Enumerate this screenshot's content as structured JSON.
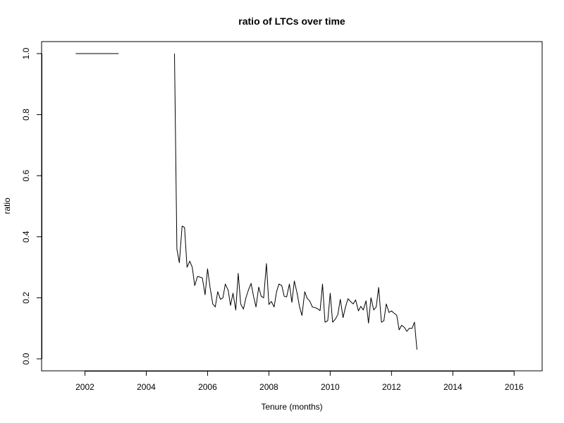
{
  "chart_data": {
    "type": "line",
    "title": "ratio of LTCs over time",
    "xlabel": "Tenure (months)",
    "ylabel": "ratio",
    "xlim": [
      2001.0,
      2016.5
    ],
    "ylim": [
      0.0,
      1.0
    ],
    "xticks": [
      "2002",
      "2004",
      "2006",
      "2008",
      "2010",
      "2012",
      "2014",
      "2016"
    ],
    "yticks": [
      "0.0",
      "0.2",
      "0.4",
      "0.6",
      "0.8",
      "1.0"
    ],
    "grid": false,
    "series": [
      {
        "segments": [
          {
            "x": [
              2001.7,
              2003.1
            ],
            "y": [
              1.0,
              1.0
            ]
          },
          {
            "x": [
              2004.92,
              2005.0,
              2005.08,
              2005.17,
              2005.25,
              2005.33,
              2005.42,
              2005.5,
              2005.58,
              2005.67,
              2005.75,
              2005.83,
              2005.92,
              2006.0,
              2006.08,
              2006.17,
              2006.25,
              2006.33,
              2006.42,
              2006.5,
              2006.58,
              2006.67,
              2006.75,
              2006.83,
              2006.92,
              2007.0,
              2007.08,
              2007.17,
              2007.25,
              2007.33,
              2007.42,
              2007.5,
              2007.58,
              2007.67,
              2007.75,
              2007.83,
              2007.92,
              2008.0,
              2008.08,
              2008.17,
              2008.25,
              2008.33,
              2008.42,
              2008.5,
              2008.58,
              2008.67,
              2008.75,
              2008.83,
              2008.92,
              2009.0,
              2009.08,
              2009.17,
              2009.25,
              2009.33,
              2009.42,
              2009.5,
              2009.58,
              2009.67,
              2009.75,
              2009.83,
              2009.92,
              2010.0,
              2010.08,
              2010.17,
              2010.25,
              2010.33,
              2010.42,
              2010.5,
              2010.58,
              2010.67,
              2010.75,
              2010.83,
              2010.92,
              2011.0,
              2011.08,
              2011.17,
              2011.25,
              2011.33,
              2011.42,
              2011.5,
              2011.58,
              2011.67,
              2011.75,
              2011.83,
              2011.92,
              2012.0,
              2012.08,
              2012.17,
              2012.25,
              2012.33,
              2012.42,
              2012.5,
              2012.58,
              2012.67,
              2012.75,
              2012.83
            ],
            "y": [
              1.0,
              0.36,
              0.315,
              0.435,
              0.43,
              0.3,
              0.32,
              0.3,
              0.24,
              0.27,
              0.268,
              0.265,
              0.21,
              0.295,
              0.235,
              0.18,
              0.17,
              0.22,
              0.195,
              0.2,
              0.245,
              0.225,
              0.175,
              0.215,
              0.16,
              0.28,
              0.18,
              0.163,
              0.2,
              0.225,
              0.247,
              0.205,
              0.17,
              0.235,
              0.205,
              0.2,
              0.312,
              0.178,
              0.188,
              0.17,
              0.22,
              0.245,
              0.24,
              0.205,
              0.203,
              0.245,
              0.185,
              0.255,
              0.215,
              0.17,
              0.142,
              0.22,
              0.198,
              0.19,
              0.17,
              0.168,
              0.165,
              0.158,
              0.245,
              0.12,
              0.125,
              0.215,
              0.12,
              0.13,
              0.145,
              0.195,
              0.135,
              0.17,
              0.197,
              0.187,
              0.18,
              0.193,
              0.157,
              0.172,
              0.16,
              0.19,
              0.117,
              0.2,
              0.16,
              0.17,
              0.234,
              0.12,
              0.125,
              0.18,
              0.152,
              0.157,
              0.15,
              0.143,
              0.095,
              0.11,
              0.103,
              0.09,
              0.1,
              0.1,
              0.12,
              0.03
            ]
          }
        ]
      }
    ]
  }
}
